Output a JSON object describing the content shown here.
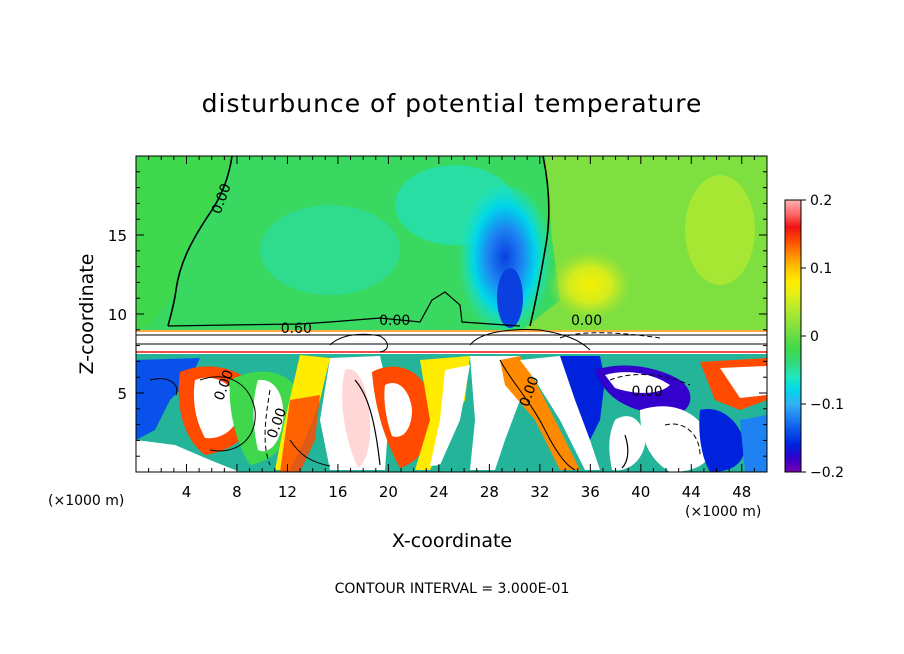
{
  "chart_data": {
    "type": "heatmap",
    "title": "disturbunce of potential temperature",
    "xlabel": "X-coordinate",
    "ylabel": "Z-coordinate",
    "x_unit": "(×1000 m)",
    "y_unit": "(×1000 m)",
    "footer": "CONTOUR INTERVAL = 3.000E-01",
    "xlim": [
      0,
      50
    ],
    "ylim": [
      0,
      20
    ],
    "x_ticks": [
      4,
      8,
      12,
      16,
      20,
      24,
      28,
      32,
      36,
      40,
      44,
      48
    ],
    "y_ticks": [
      5,
      10,
      15
    ],
    "colorbar": {
      "range": [
        -0.2,
        0.2
      ],
      "tick_values": [
        0.2,
        0.1,
        0,
        -0.1,
        -0.2
      ],
      "tick_labels": [
        "0.2",
        "0.1",
        "0",
        "−0.1",
        "−0.2"
      ],
      "colors": [
        "#7b00b0",
        "#3300cc",
        "#0022dd",
        "#0a50ea",
        "#1e82f2",
        "#35b0f5",
        "#00d6ea",
        "#20e8c0",
        "#32d97a",
        "#3fd84c",
        "#66dd44",
        "#8fe33a",
        "#b5ea2c",
        "#e2ef18",
        "#ffec00",
        "#ffc400",
        "#ff8a00",
        "#ff4a00",
        "#ee1212",
        "#ff6a6a",
        "#ffb2b2"
      ]
    },
    "contour_labels": [
      {
        "text": "0.00",
        "x": 7.1,
        "z": 17.2
      },
      {
        "text": "0.00",
        "x": 20.5,
        "z": 9.3
      },
      {
        "text": "0.00",
        "x": 35.7,
        "z": 9.3
      },
      {
        "text": "0.60",
        "x": 12.7,
        "z": 8.8
      },
      {
        "text": "0.00",
        "x": 7.3,
        "z": 5.4
      },
      {
        "text": "0.00",
        "x": 11.5,
        "z": 3.0
      },
      {
        "text": "0.00",
        "x": 40.5,
        "z": 4.8
      },
      {
        "text": "0.00",
        "x": 31.5,
        "z": 5.0
      }
    ]
  }
}
